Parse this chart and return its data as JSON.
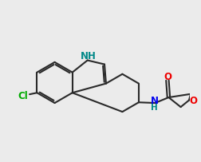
{
  "bg_color": "#ebebeb",
  "bond_color": "#2a2a2a",
  "N_color": "#0000ee",
  "NH_indole_color": "#008888",
  "O_color": "#ee0000",
  "Cl_color": "#00aa00",
  "lw": 1.5,
  "fs": 8.5,
  "xlim": [
    0.0,
    3.0
  ],
  "ylim": [
    0.5,
    3.0
  ]
}
